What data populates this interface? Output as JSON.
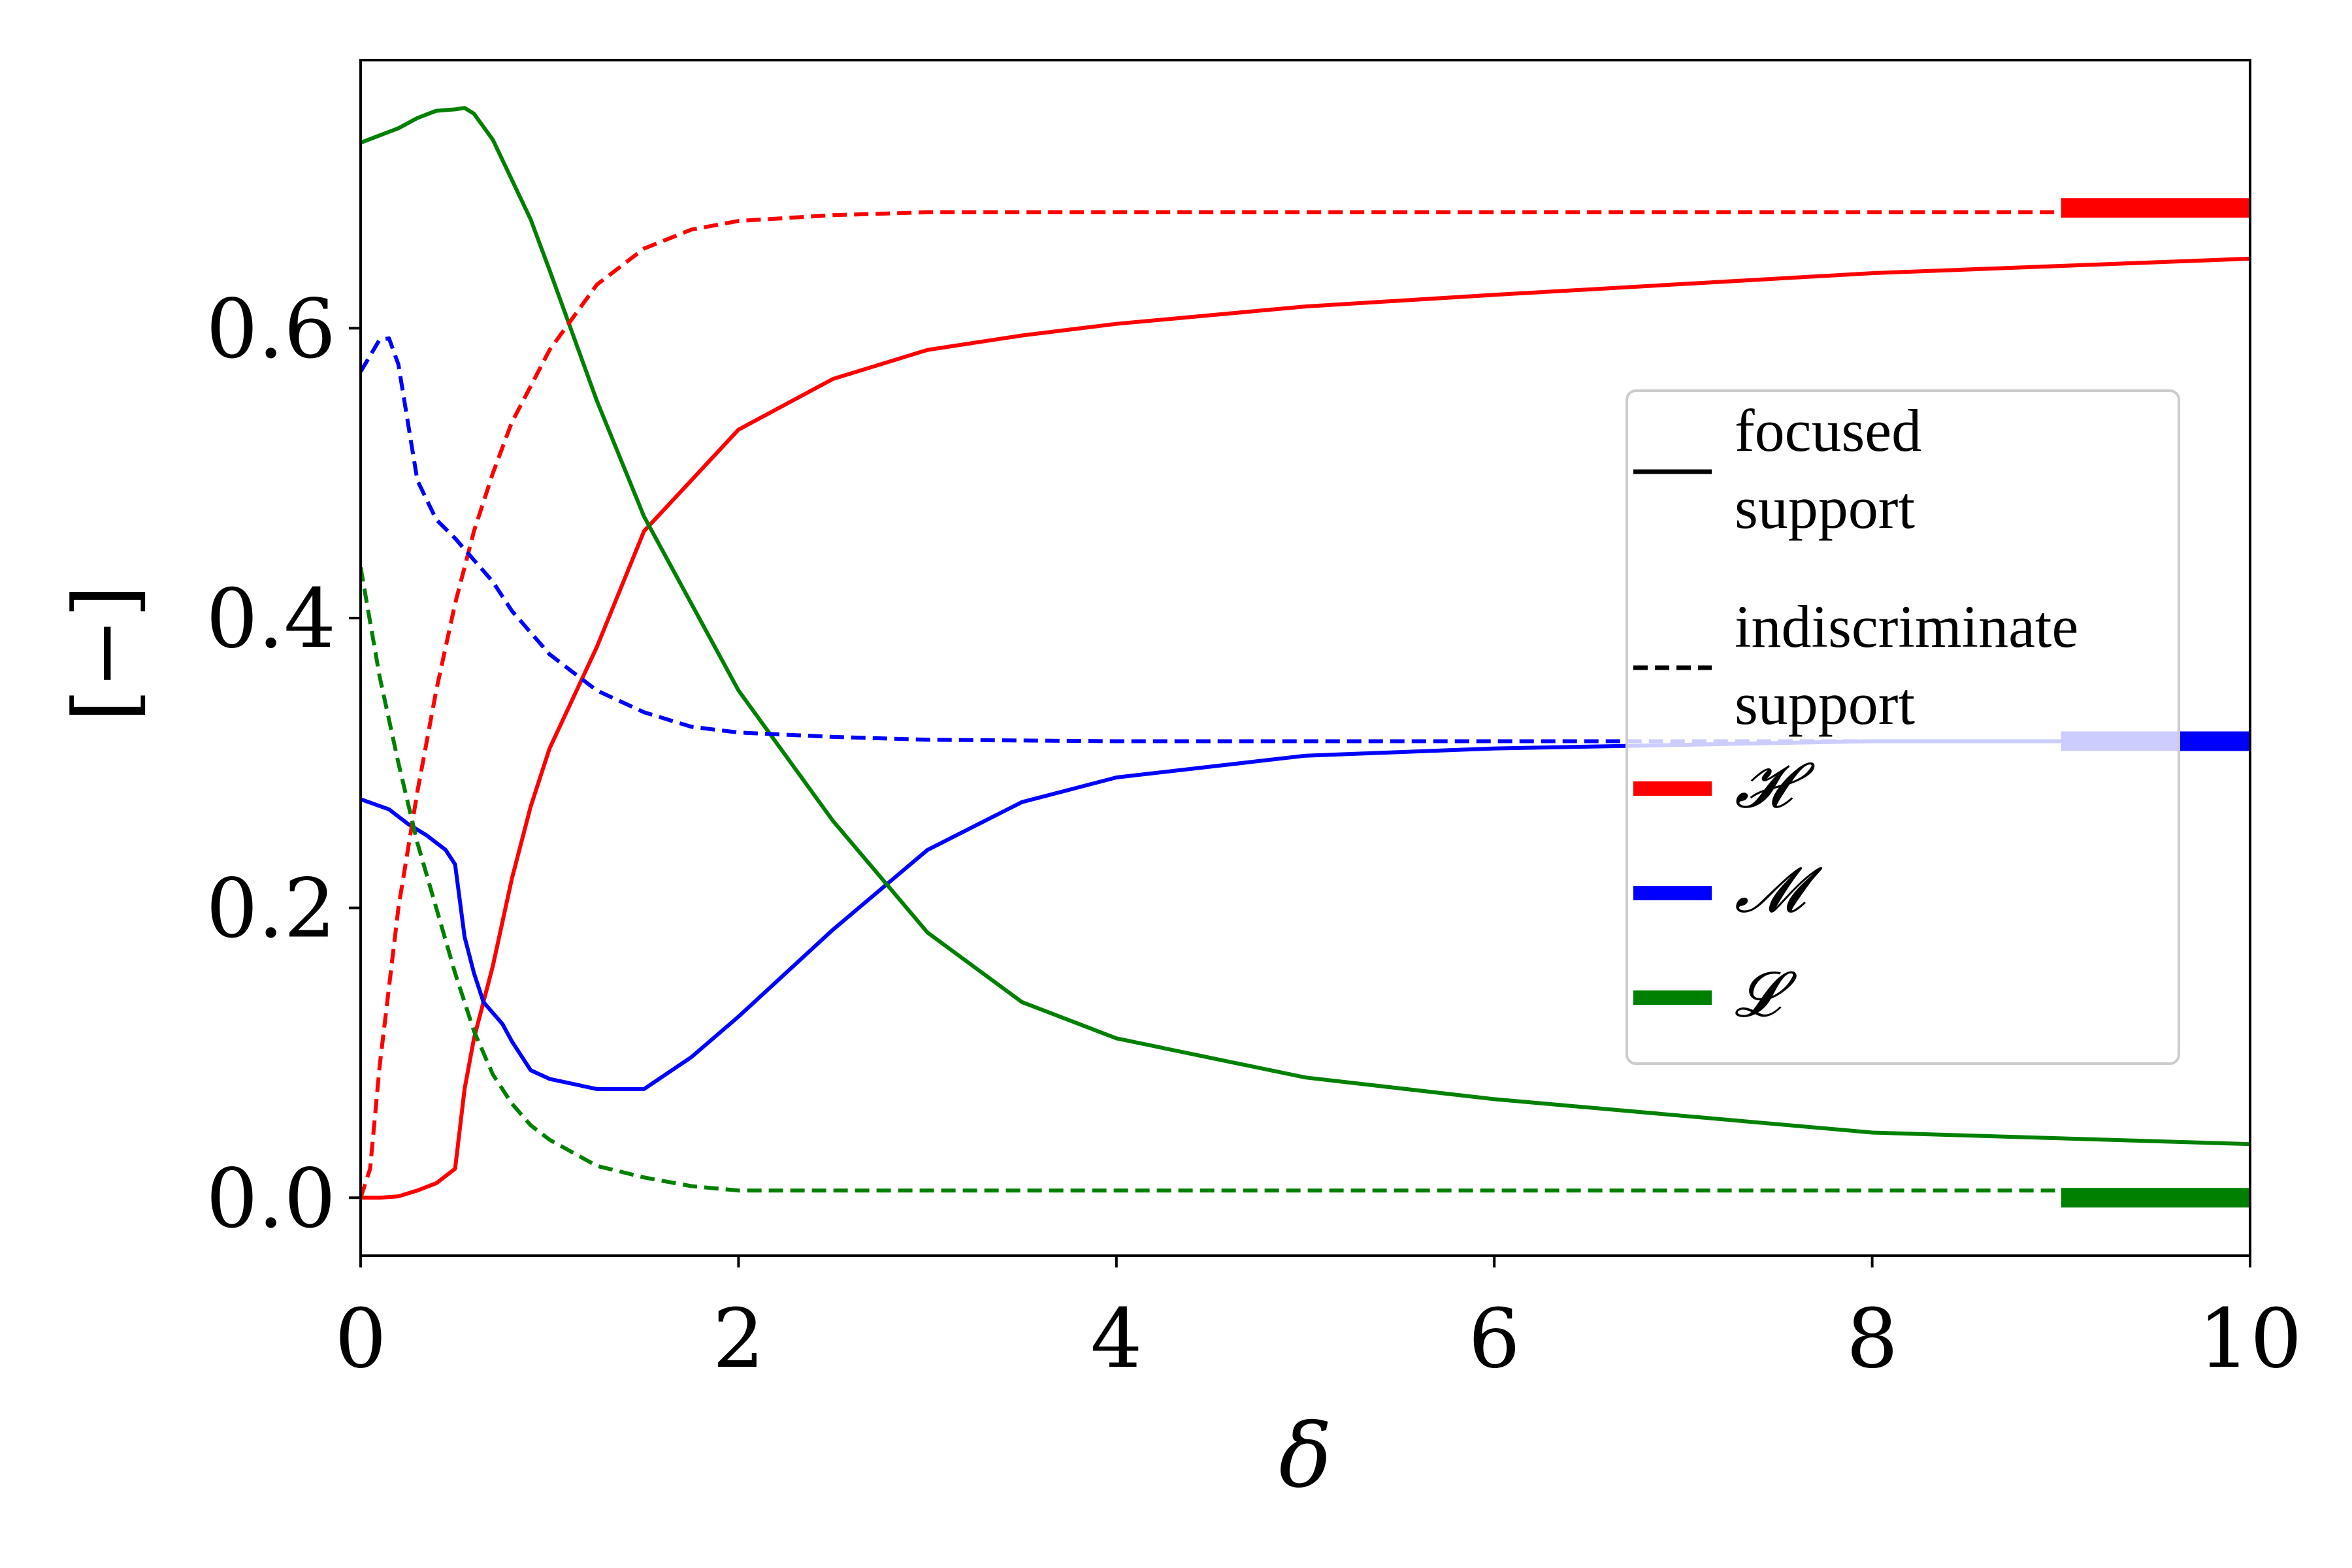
{
  "chart_data": {
    "type": "line",
    "xlabel": "δ",
    "ylabel": "[−]",
    "xlim": [
      0,
      10
    ],
    "ylim": [
      -0.04,
      0.785
    ],
    "xticks": [
      0,
      2,
      4,
      6,
      8,
      10
    ],
    "xtick_labels": [
      "0",
      "2",
      "4",
      "6",
      "8",
      "10"
    ],
    "yticks": [
      0.0,
      0.2,
      0.4,
      0.6
    ],
    "ytick_labels": [
      "0.0",
      "0.2",
      "0.4",
      "0.6"
    ],
    "grid": false,
    "legend": {
      "placement": "center-right",
      "entries": [
        {
          "label": "focused support",
          "lines": [
            "focused",
            "support"
          ],
          "style": "solid",
          "color": "#000000"
        },
        {
          "label": "indiscriminate support",
          "lines": [
            "indiscriminate",
            "support"
          ],
          "style": "dashed",
          "color": "#000000"
        },
        {
          "label": "𝓗",
          "lines": [
            "𝓗"
          ],
          "style": "thick",
          "color": "#ff0000"
        },
        {
          "label": "𝓜",
          "lines": [
            "𝓜"
          ],
          "style": "thick",
          "color": "#0000ff"
        },
        {
          "label": "𝓛",
          "lines": [
            "𝓛"
          ],
          "style": "thick",
          "color": "#008000"
        }
      ]
    },
    "series": [
      {
        "group": "H",
        "style": "solid",
        "color": "#ff0000",
        "x": [
          0,
          0.1,
          0.2,
          0.3,
          0.4,
          0.5,
          0.55,
          0.6,
          0.7,
          0.75,
          0.8,
          0.9,
          1.0,
          1.25,
          1.5,
          1.75,
          2.0,
          2.5,
          3.0,
          3.5,
          4.0,
          5.0,
          6.0,
          8.0,
          10.0
        ],
        "y": [
          0.0,
          0.0,
          0.001,
          0.005,
          0.01,
          0.02,
          0.075,
          0.11,
          0.16,
          0.19,
          0.22,
          0.27,
          0.31,
          0.38,
          0.46,
          0.495,
          0.53,
          0.565,
          0.585,
          0.595,
          0.603,
          0.615,
          0.623,
          0.638,
          0.648
        ]
      },
      {
        "group": "M",
        "style": "solid",
        "color": "#0000ff",
        "x": [
          0,
          0.15,
          0.25,
          0.35,
          0.45,
          0.5,
          0.55,
          0.6,
          0.65,
          0.75,
          0.8,
          0.9,
          1.0,
          1.25,
          1.5,
          1.75,
          2.0,
          2.5,
          3.0,
          3.5,
          4.0,
          5.0,
          6.0,
          8.0,
          10.0
        ],
        "y": [
          0.275,
          0.268,
          0.258,
          0.25,
          0.24,
          0.23,
          0.18,
          0.155,
          0.135,
          0.12,
          0.108,
          0.088,
          0.082,
          0.075,
          0.075,
          0.097,
          0.125,
          0.185,
          0.24,
          0.273,
          0.29,
          0.305,
          0.31,
          0.315,
          0.315
        ]
      },
      {
        "group": "L",
        "style": "solid",
        "color": "#008000",
        "x": [
          0,
          0.1,
          0.2,
          0.3,
          0.4,
          0.5,
          0.55,
          0.6,
          0.7,
          0.9,
          1.0,
          1.25,
          1.5,
          2.0,
          2.5,
          3.0,
          3.5,
          4.0,
          5.0,
          6.0,
          8.0,
          10.0
        ],
        "y": [
          0.728,
          0.733,
          0.738,
          0.745,
          0.75,
          0.751,
          0.752,
          0.748,
          0.73,
          0.675,
          0.64,
          0.55,
          0.47,
          0.35,
          0.26,
          0.183,
          0.135,
          0.11,
          0.083,
          0.068,
          0.045,
          0.037
        ]
      },
      {
        "group": "H",
        "style": "dashed",
        "color": "#ff0000",
        "x": [
          0,
          0.05,
          0.1,
          0.2,
          0.3,
          0.4,
          0.5,
          0.6,
          0.7,
          0.8,
          0.9,
          1.0,
          1.25,
          1.5,
          1.75,
          2.0,
          2.5,
          3.0,
          4.0,
          6.0,
          8.0,
          10.0
        ],
        "y": [
          0.0,
          0.02,
          0.09,
          0.2,
          0.28,
          0.35,
          0.41,
          0.46,
          0.5,
          0.535,
          0.56,
          0.585,
          0.63,
          0.655,
          0.668,
          0.674,
          0.678,
          0.68,
          0.68,
          0.68,
          0.68,
          0.68
        ]
      },
      {
        "group": "M",
        "style": "dashed",
        "color": "#0000ff",
        "x": [
          0,
          0.1,
          0.15,
          0.2,
          0.3,
          0.4,
          0.5,
          0.6,
          0.7,
          0.8,
          0.9,
          1.0,
          1.25,
          1.5,
          1.75,
          2.0,
          2.5,
          3.0,
          4.0,
          6.0,
          8.0,
          10.0
        ],
        "y": [
          0.57,
          0.592,
          0.593,
          0.575,
          0.495,
          0.468,
          0.455,
          0.44,
          0.425,
          0.405,
          0.39,
          0.375,
          0.35,
          0.335,
          0.325,
          0.321,
          0.318,
          0.316,
          0.315,
          0.315,
          0.315,
          0.315
        ]
      },
      {
        "group": "L",
        "style": "dashed",
        "color": "#008000",
        "x": [
          0,
          0.1,
          0.2,
          0.3,
          0.4,
          0.5,
          0.6,
          0.7,
          0.8,
          0.9,
          1.0,
          1.25,
          1.5,
          1.75,
          2.0,
          2.5,
          3.0,
          4.0,
          6.0,
          8.0,
          10.0
        ],
        "y": [
          0.435,
          0.36,
          0.3,
          0.245,
          0.2,
          0.155,
          0.115,
          0.085,
          0.065,
          0.05,
          0.04,
          0.022,
          0.014,
          0.008,
          0.005,
          0.005,
          0.005,
          0.005,
          0.005,
          0.005,
          0.005
        ]
      }
    ],
    "limit_markers": [
      {
        "group": "H",
        "color": "#ff0000",
        "y": 0.683,
        "x_range": [
          9,
          10
        ]
      },
      {
        "group": "M",
        "color": "#0000ff",
        "y": 0.315,
        "x_range": [
          9,
          10
        ]
      },
      {
        "group": "L",
        "color": "#008000",
        "y": 0.0,
        "x_range": [
          9,
          10
        ]
      }
    ]
  }
}
